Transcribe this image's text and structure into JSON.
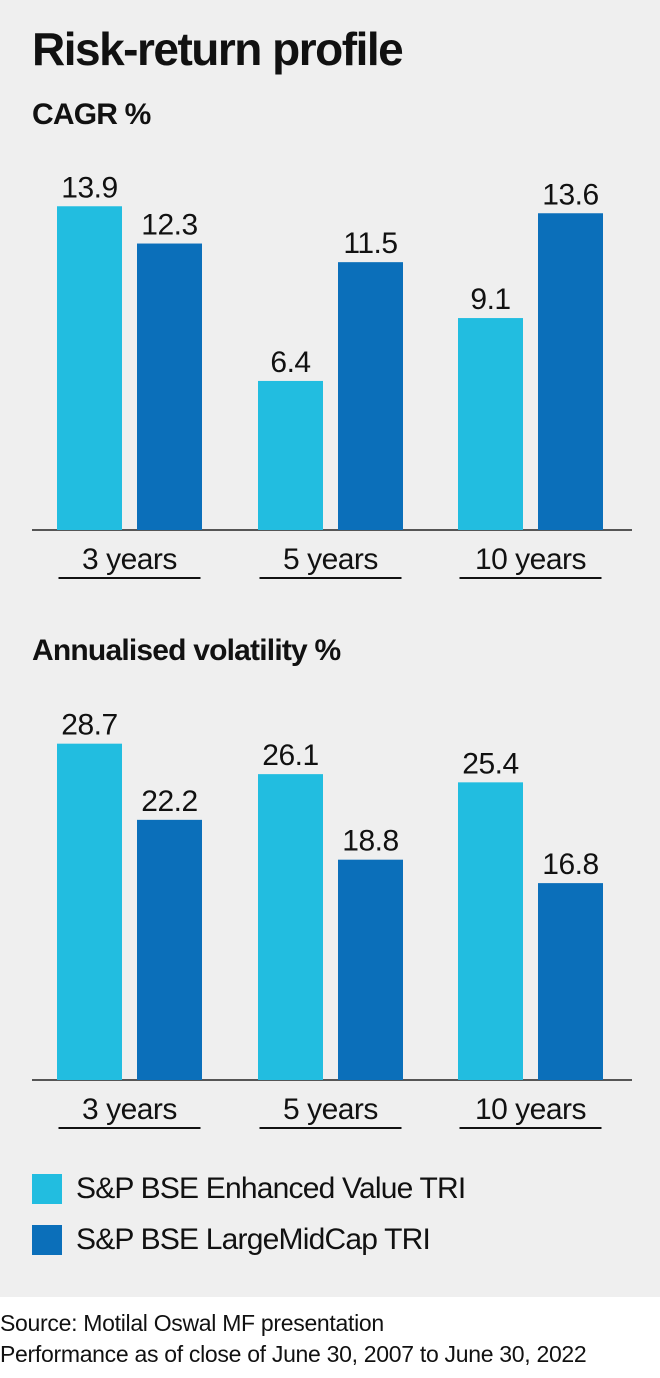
{
  "title": "Risk-return profile",
  "colors": {
    "enhanced_value": "#22bde0",
    "largemidcap": "#0b6fba"
  },
  "chart_data": [
    {
      "type": "bar",
      "title": "CAGR %",
      "categories": [
        "3 years",
        "5 years",
        "10 years"
      ],
      "series": [
        {
          "name": "S&P BSE Enhanced Value TRI",
          "values": [
            13.9,
            6.4,
            9.1
          ]
        },
        {
          "name": "S&P BSE LargeMidCap TRI",
          "values": [
            12.3,
            11.5,
            13.6
          ]
        }
      ],
      "ylim": [
        0,
        15.5
      ],
      "grid": false,
      "legend": "bottom"
    },
    {
      "type": "bar",
      "title": "Annualised volatility %",
      "categories": [
        "3 years",
        "5 years",
        "10 years"
      ],
      "series": [
        {
          "name": "S&P BSE Enhanced Value TRI",
          "values": [
            28.7,
            26.1,
            25.4
          ]
        },
        {
          "name": "S&P BSE LargeMidCap TRI",
          "values": [
            22.2,
            18.8,
            16.8
          ]
        }
      ],
      "ylim": [
        0,
        32
      ],
      "grid": false,
      "legend": "bottom"
    }
  ],
  "legend": [
    {
      "label": "S&P BSE Enhanced Value TRI",
      "color_key": "enhanced_value"
    },
    {
      "label": "S&P BSE LargeMidCap TRI",
      "color_key": "largemidcap"
    }
  ],
  "source": {
    "line1": "Source: Motilal Oswal MF presentation",
    "line2": "Performance as of close of June 30, 2007 to June 30, 2022"
  }
}
